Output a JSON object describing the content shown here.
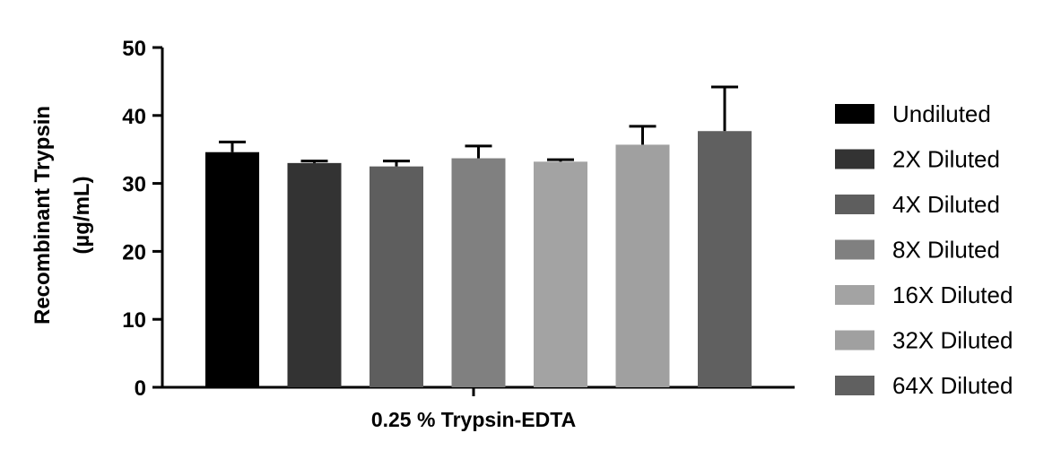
{
  "chart_data": {
    "type": "bar",
    "xlabel": "0.25 % Trypsin-EDTA",
    "ylabel_lines": [
      "Recombinant Trypsin",
      "(µg/mL)"
    ],
    "ylim": [
      0,
      50
    ],
    "yticks": [
      0,
      10,
      20,
      30,
      40,
      50
    ],
    "grid": false,
    "legend_position": "right",
    "series": [
      {
        "name": "Undiluted",
        "value": 34.6,
        "error": 1.5,
        "color": "#000000"
      },
      {
        "name": "2X Diluted",
        "value": 33.0,
        "error": 0.3,
        "color": "#333333"
      },
      {
        "name": "4X Diluted",
        "value": 32.5,
        "error": 0.8,
        "color": "#5e5e5e"
      },
      {
        "name": "8X Diluted",
        "value": 33.7,
        "error": 1.8,
        "color": "#808080"
      },
      {
        "name": "16X Diluted",
        "value": 33.2,
        "error": 0.3,
        "color": "#a3a3a3"
      },
      {
        "name": "32X Diluted",
        "value": 35.7,
        "error": 2.7,
        "color": "#a0a0a0"
      },
      {
        "name": "64X Diluted",
        "value": 37.7,
        "error": 6.5,
        "color": "#606060"
      }
    ]
  }
}
